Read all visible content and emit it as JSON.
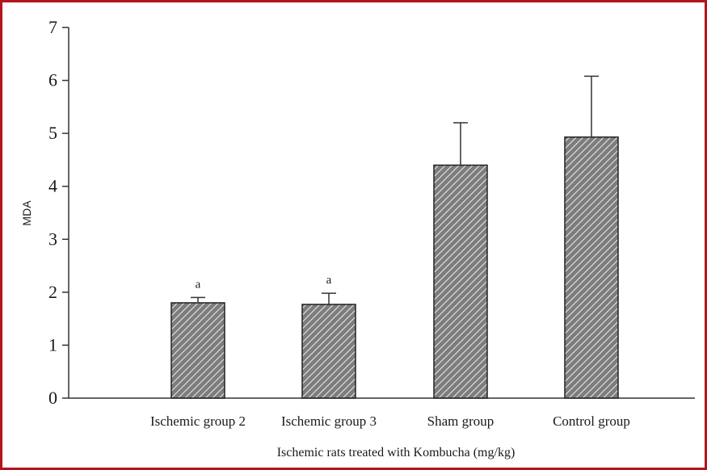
{
  "chart_data": {
    "type": "bar",
    "categories": [
      "Ischemic group 2",
      "Ischemic group 3",
      "Sham group",
      "Control group"
    ],
    "values": [
      1.8,
      1.77,
      4.4,
      4.93
    ],
    "error_upper": [
      1.9,
      1.98,
      5.2,
      6.08
    ],
    "annotations": [
      "a",
      "a",
      "",
      ""
    ],
    "title": "",
    "xlabel": "Ischemic rats treated with Kombucha (mg/kg)",
    "ylabel": "MDA",
    "ylim": [
      0,
      7
    ],
    "yticks": [
      0,
      1,
      2,
      3,
      4,
      5,
      6,
      7
    ],
    "grid": false,
    "legend": "none",
    "bar_pattern": "diagonal-hatch",
    "colors": {
      "bar_fill": "#8a8a8a",
      "bar_stroke": "#222222",
      "hatch": "#f0f0f0",
      "axis": "#333333",
      "frame": "#b2161c"
    }
  }
}
